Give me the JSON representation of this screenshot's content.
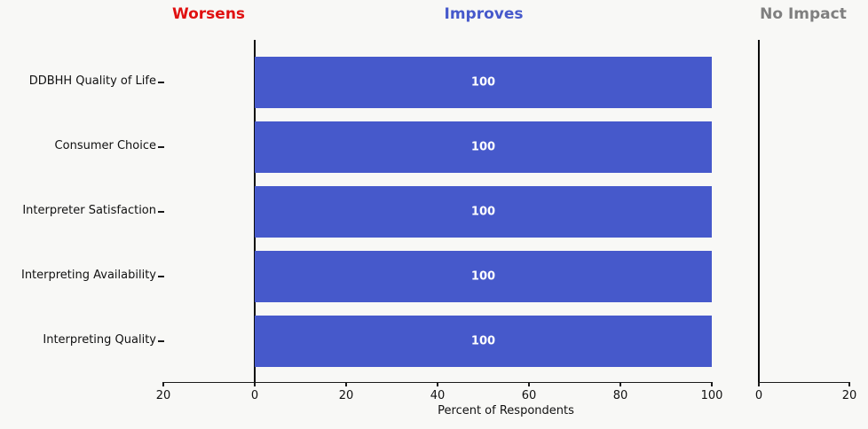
{
  "figure": {
    "background": "#f8f8f6",
    "column_headers": [
      {
        "id": "worsens",
        "label": "Worsens",
        "color": "#e01111"
      },
      {
        "id": "improves",
        "label": "Improves",
        "color": "#4659cb"
      },
      {
        "id": "no_impact",
        "label": "No Impact",
        "color": "#7f7f7f"
      }
    ]
  },
  "chart_data": {
    "type": "bar",
    "orientation": "horizontal",
    "title": "",
    "xlabel": "Percent of Respondents",
    "categories": [
      "DDBHH Quality of Life",
      "Consumer Choice",
      "Interpreter Satisfaction",
      "Interpreting Availability",
      "Interpreting Quality"
    ],
    "series": [
      {
        "name": "Worsens",
        "values": [
          0,
          0,
          0,
          0,
          0
        ]
      },
      {
        "name": "Improves",
        "values": [
          100,
          100,
          100,
          100,
          100
        ]
      },
      {
        "name": "No Impact",
        "values": [
          0,
          0,
          0,
          0,
          0
        ]
      }
    ],
    "bar_value_labels": [
      "100",
      "100",
      "100",
      "100",
      "100"
    ],
    "bar_color": "#4659cb",
    "bar_label_color": "#ffffff",
    "grid": false,
    "legend_position": "none",
    "main_axis": {
      "xlim": [
        -20,
        100
      ],
      "ticks": [
        -20,
        0,
        20,
        40,
        60,
        80,
        100
      ],
      "tick_labels": [
        "20",
        "0",
        "20",
        "40",
        "60",
        "80",
        "100"
      ],
      "zero_line": true
    },
    "no_impact_axis": {
      "xlim": [
        0,
        20
      ],
      "ticks": [
        0,
        20
      ],
      "tick_labels": [
        "0",
        "20"
      ],
      "zero_line": true
    }
  }
}
